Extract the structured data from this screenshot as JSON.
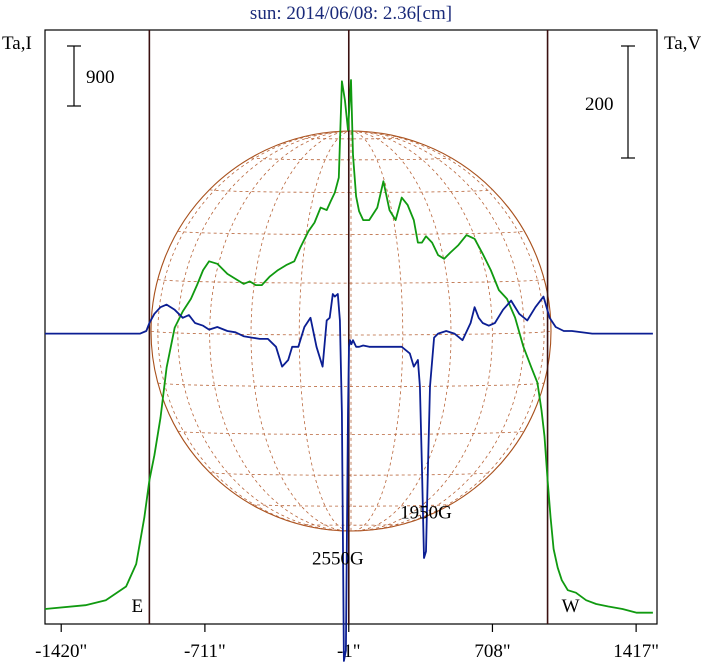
{
  "chart_data": {
    "type": "line",
    "title": "sun: 2014/06/08: 2.36[cm]",
    "ylabel_left": "Ta,I",
    "ylabel_right": "Ta,V",
    "scale_bar_left": "900",
    "scale_bar_right": "200",
    "xlim": [
      -1500,
      1520
    ],
    "ylim_I": [
      -1150,
      3600
    ],
    "ylim_V": [
      -220,
      230
    ],
    "x_ticks": [
      {
        "value": -1420,
        "label": "-1420\""
      },
      {
        "value": -711,
        "label": "-711\""
      },
      {
        "value": -1,
        "label": "-1\""
      },
      {
        "value": 708,
        "label": "708\""
      },
      {
        "value": 1417,
        "label": "1417\""
      }
    ],
    "limb_markers": [
      {
        "x": -985,
        "label": "E"
      },
      {
        "x": -1,
        "label": null
      },
      {
        "x": 980,
        "label": "W"
      }
    ],
    "annotations": [
      {
        "text": "1950G",
        "x": 380,
        "y_V": -140
      },
      {
        "text": "2550G",
        "x": -55,
        "y_V": -175
      }
    ],
    "series": [
      {
        "axis": "I",
        "color": "#109a10",
        "x": [
          -1500,
          -1300,
          -1200,
          -1100,
          -1050,
          -1010,
          -985,
          -960,
          -930,
          -900,
          -860,
          -820,
          -780,
          -750,
          -720,
          -690,
          -650,
          -600,
          -560,
          -520,
          -490,
          -460,
          -430,
          -390,
          -350,
          -310,
          -270,
          -240,
          -200,
          -170,
          -140,
          -110,
          -90,
          -70,
          -50,
          -35,
          -20,
          -5,
          10,
          20,
          35,
          50,
          70,
          100,
          140,
          170,
          200,
          230,
          260,
          290,
          320,
          340,
          360,
          380,
          410,
          440,
          470,
          500,
          540,
          580,
          620,
          660,
          700,
          740,
          780,
          820,
          860,
          900,
          930,
          950,
          965,
          980,
          995,
          1010,
          1030,
          1050,
          1080,
          1120,
          1170,
          1220,
          1280,
          1350,
          1420,
          1500
        ],
        "y": [
          -1030,
          -1000,
          -960,
          -850,
          -670,
          -300,
          0,
          200,
          500,
          900,
          1220,
          1350,
          1450,
          1560,
          1680,
          1750,
          1730,
          1650,
          1610,
          1570,
          1590,
          1560,
          1560,
          1630,
          1680,
          1720,
          1750,
          1860,
          1990,
          2060,
          2180,
          2160,
          2230,
          2300,
          2420,
          3190,
          3040,
          2800,
          3200,
          2600,
          2270,
          2150,
          2080,
          2080,
          2180,
          2390,
          2160,
          2080,
          2260,
          2200,
          2080,
          1900,
          1900,
          1950,
          1900,
          1800,
          1770,
          1820,
          1880,
          1960,
          1930,
          1810,
          1680,
          1520,
          1450,
          1300,
          1070,
          900,
          780,
          560,
          350,
          0,
          -300,
          -550,
          -700,
          -800,
          -880,
          -900,
          -960,
          -990,
          -1010,
          -1030,
          -1060,
          -1060
        ]
      },
      {
        "axis": "V",
        "color": "#0b1e93",
        "x": [
          -1500,
          -1200,
          -1100,
          -1060,
          -1030,
          -1000,
          -985,
          -960,
          -930,
          -900,
          -860,
          -820,
          -790,
          -760,
          -720,
          -690,
          -650,
          -600,
          -560,
          -520,
          -480,
          -440,
          -400,
          -360,
          -330,
          -300,
          -280,
          -250,
          -220,
          -190,
          -160,
          -130,
          -110,
          -95,
          -80,
          -70,
          -55,
          -45,
          -35,
          -25,
          -15,
          -5,
          0,
          5,
          12,
          20,
          35,
          50,
          70,
          100,
          140,
          180,
          220,
          260,
          300,
          320,
          340,
          350,
          360,
          370,
          380,
          390,
          400,
          420,
          440,
          480,
          520,
          560,
          600,
          620,
          640,
          660,
          690,
          720,
          760,
          800,
          840,
          880,
          920,
          960,
          990,
          1020,
          1060,
          1100,
          1200,
          1500
        ],
        "y": [
          0,
          0,
          0,
          0,
          0,
          2,
          8,
          15,
          20,
          22,
          18,
          12,
          14,
          8,
          6,
          3,
          5,
          2,
          1,
          -2,
          -3,
          -4,
          -4,
          -10,
          -25,
          -20,
          -10,
          -10,
          5,
          12,
          -10,
          -25,
          10,
          12,
          30,
          28,
          30,
          10,
          -60,
          -248,
          -240,
          -60,
          -10,
          -5,
          -8,
          -5,
          -10,
          -10,
          -9,
          -10,
          -10,
          -10,
          -10,
          -10,
          -15,
          -25,
          -20,
          -40,
          -100,
          -170,
          -165,
          -100,
          -40,
          -3,
          0,
          2,
          0,
          -5,
          8,
          20,
          12,
          8,
          6,
          8,
          18,
          25,
          15,
          10,
          20,
          28,
          12,
          5,
          2,
          2,
          0,
          0
        ]
      }
    ]
  }
}
